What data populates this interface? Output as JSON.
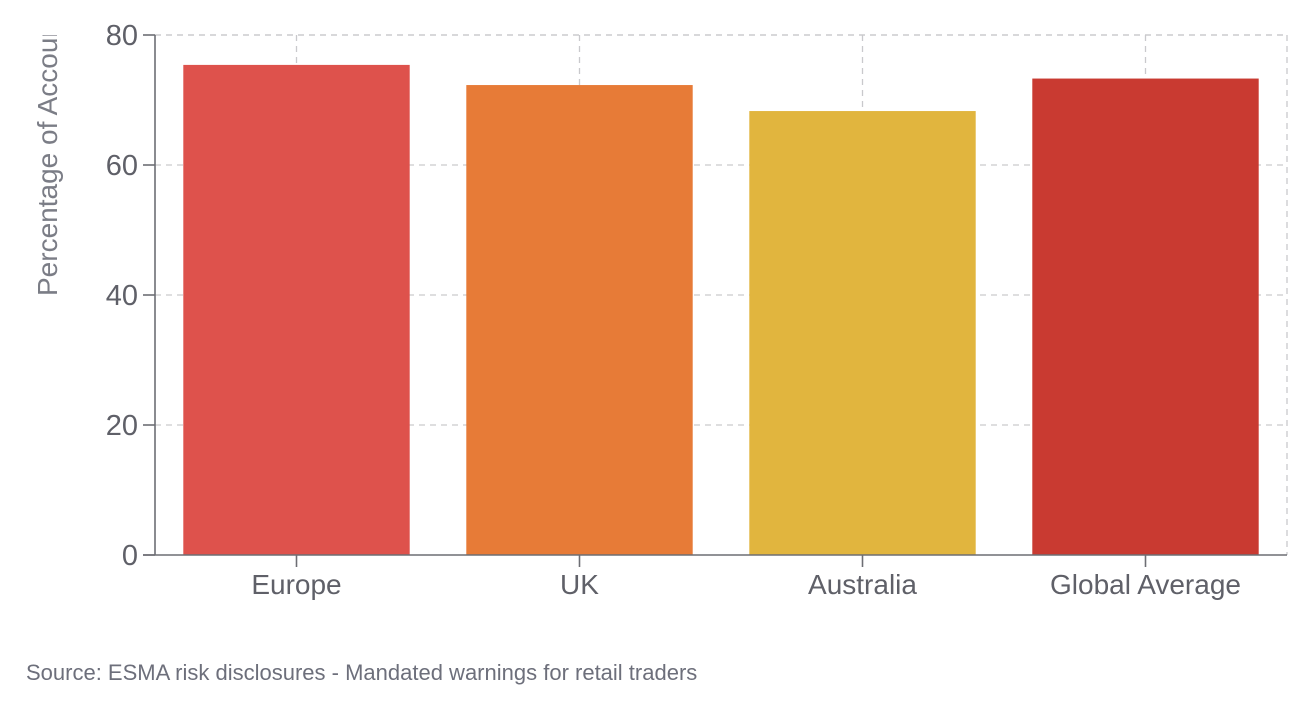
{
  "chart_data": {
    "type": "bar",
    "categories": [
      "Europe",
      "UK",
      "Australia",
      "Global Average"
    ],
    "values": [
      75.4,
      72.3,
      68.3,
      73.3
    ],
    "colors": [
      "#de524c",
      "#e77b37",
      "#e1b53e",
      "#c93a31"
    ],
    "ylabel": "Percentage of Accounts Losing Money (%)",
    "ylim": [
      0,
      80
    ],
    "yticks": [
      0,
      20,
      40,
      60,
      80
    ],
    "grid": true,
    "legend": "none"
  },
  "footer": {
    "source": "Source: ESMA risk disclosures - Mandated warnings for retail traders"
  }
}
